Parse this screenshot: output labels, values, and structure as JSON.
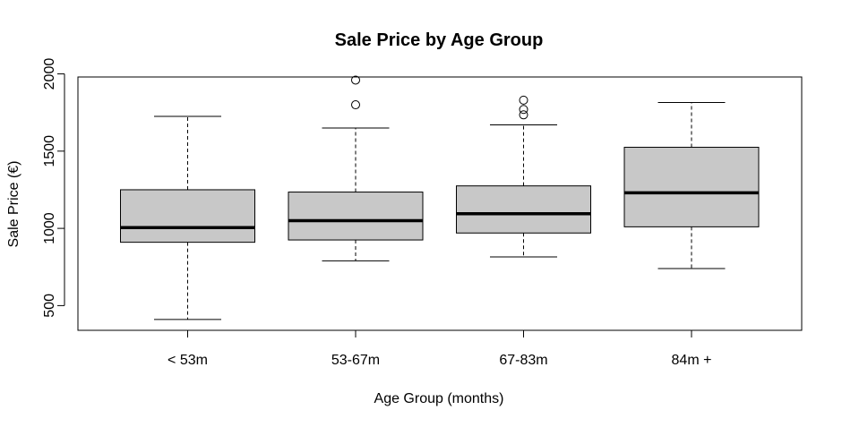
{
  "chart_data": {
    "type": "boxplot",
    "title": "Sale Price by Age Group",
    "xlabel": "Age Group (months)",
    "ylabel": "Sale Price (€)",
    "ylim": [
      340,
      1980
    ],
    "yticks": [
      500,
      1000,
      1500,
      2000
    ],
    "grid": false,
    "legend": "none",
    "box_color": "#c8c8c8",
    "categories": [
      "< 53m",
      "53-67m",
      "67-83m",
      "84m +"
    ],
    "boxes": [
      {
        "label": "< 53m",
        "min": 410,
        "q1": 910,
        "median": 1005,
        "q3": 1250,
        "max": 1725,
        "outliers": []
      },
      {
        "label": "53-67m",
        "min": 790,
        "q1": 925,
        "median": 1050,
        "q3": 1235,
        "max": 1650,
        "outliers": [
          1800,
          1960
        ]
      },
      {
        "label": "67-83m",
        "min": 815,
        "q1": 970,
        "median": 1095,
        "q3": 1275,
        "max": 1670,
        "outliers": [
          1735,
          1770,
          1830
        ]
      },
      {
        "label": "84m +",
        "min": 740,
        "q1": 1010,
        "median": 1230,
        "q3": 1525,
        "max": 1815,
        "outliers": []
      }
    ]
  }
}
